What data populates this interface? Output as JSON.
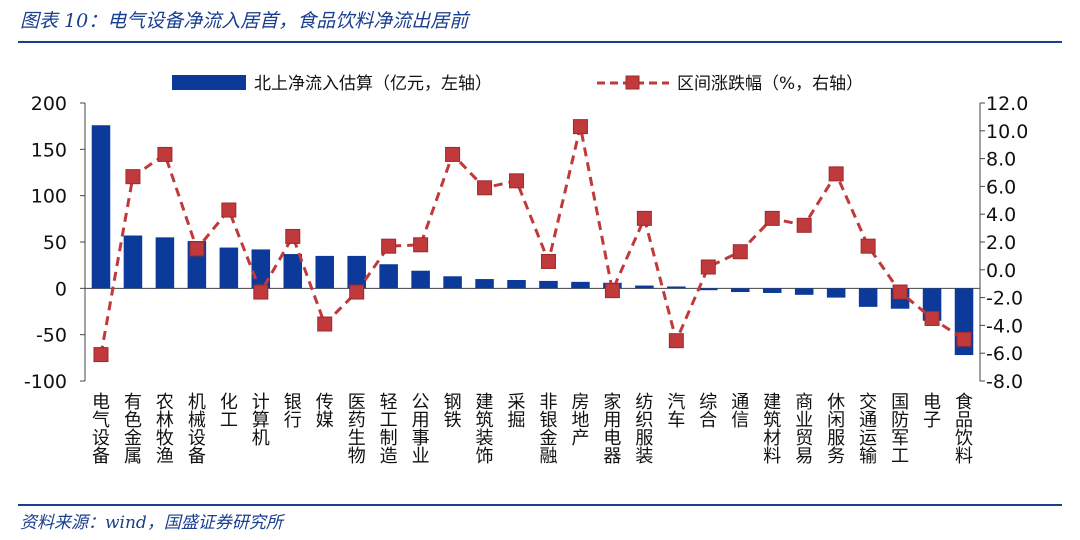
{
  "figure": {
    "title": "图表 10：电气设备净流入居首，食品饮料净流出居前",
    "source": "资料来源：wind，国盛证券研究所"
  },
  "chart_data": {
    "type": "bar",
    "categories": [
      "电气设备",
      "有色金属",
      "农林牧渔",
      "机械设备",
      "化工",
      "计算机",
      "银行",
      "传媒",
      "医药生物",
      "轻工制造",
      "公用事业",
      "钢铁",
      "建筑装饰",
      "采掘",
      "非银金融",
      "房地产",
      "家用电器",
      "纺织服装",
      "汽车",
      "综合",
      "通信",
      "建筑材料",
      "商业贸易",
      "休闲服务",
      "交通运输",
      "国防军工",
      "电子",
      "食品饮料"
    ],
    "series": [
      {
        "name": "北上净流入估算（亿元，左轴）",
        "type": "bar",
        "axis": "left",
        "color": "#0b3a9a",
        "values": [
          176,
          57,
          55,
          51,
          44,
          42,
          37,
          35,
          35,
          26,
          19,
          13,
          10,
          9,
          8,
          7,
          6,
          3,
          2,
          -2,
          -4,
          -5,
          -7,
          -10,
          -20,
          -22,
          -35,
          -72
        ]
      },
      {
        "name": "区间涨跌幅（%，右轴）",
        "type": "line",
        "axis": "right",
        "color": "#c0393b",
        "values": [
          -6.1,
          6.7,
          8.3,
          1.5,
          4.3,
          -1.6,
          2.4,
          -3.9,
          -1.6,
          1.7,
          1.8,
          8.3,
          5.9,
          6.4,
          0.6,
          10.3,
          -1.5,
          3.7,
          -5.1,
          0.2,
          1.3,
          3.7,
          3.2,
          6.9,
          1.7,
          -1.6,
          -3.5,
          -5.0
        ]
      }
    ],
    "left_axis": {
      "ylim": [
        -100,
        200
      ],
      "ticks": [
        "200",
        "150",
        "100",
        "50",
        "0",
        "-50",
        "-100"
      ]
    },
    "right_axis": {
      "ylim": [
        -8,
        12
      ],
      "ticks": [
        "12.0",
        "10.0",
        "8.0",
        "6.0",
        "4.0",
        "2.0",
        "0.0",
        "-2.0",
        "-4.0",
        "-6.0",
        "-8.0"
      ]
    },
    "grid": false,
    "legend_position": "top"
  }
}
